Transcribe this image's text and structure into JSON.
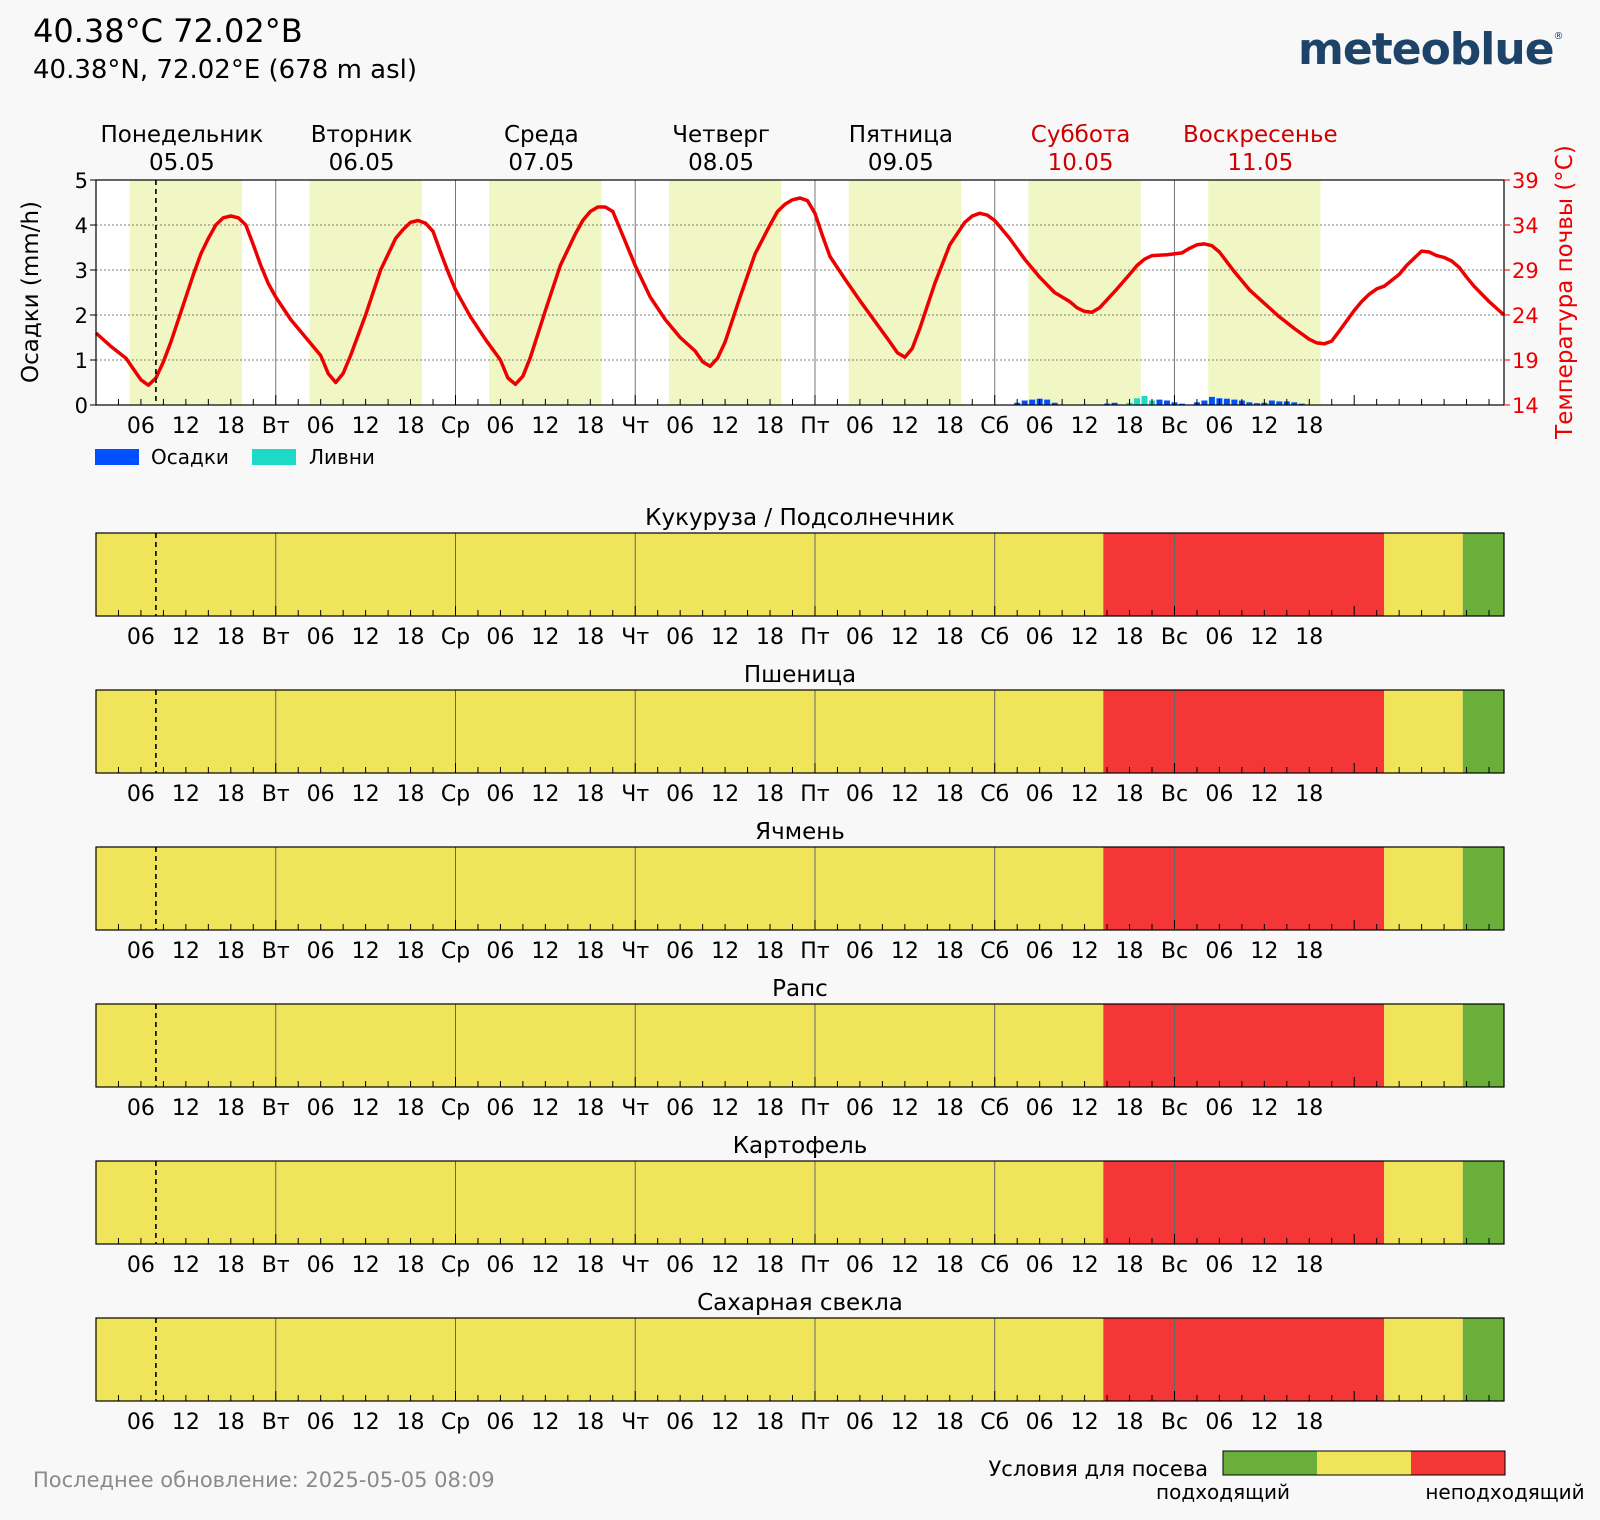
{
  "header": {
    "title": "40.38°C 72.02°B",
    "subtitle": "40.38°N, 72.02°E (678 m asl)",
    "brand": "meteoblue",
    "brand_mark": "®"
  },
  "footer": {
    "last_update": "Последнее обновление: 2025-05-05 08:09"
  },
  "colors": {
    "suitable": "#6aaf3a",
    "neutral": "#f0e55a",
    "unsuitable": "#f43636",
    "precip": "#0050ff",
    "showers": "#1ed8c8",
    "temp_line": "#ee0000",
    "daylight": "#f1f7c4",
    "weekend_label": "#cc0000"
  },
  "days": [
    {
      "name": "Понедельник",
      "date": "05.05",
      "short": "",
      "weekend": false
    },
    {
      "name": "Вторник",
      "date": "06.05",
      "short": "Вт",
      "weekend": false
    },
    {
      "name": "Среда",
      "date": "07.05",
      "short": "Ср",
      "weekend": false
    },
    {
      "name": "Четверг",
      "date": "08.05",
      "short": "Чт",
      "weekend": false
    },
    {
      "name": "Пятница",
      "date": "09.05",
      "short": "Пт",
      "weekend": false
    },
    {
      "name": "Суббота",
      "date": "10.05",
      "short": "Сб",
      "weekend": true
    },
    {
      "name": "Воскресенье",
      "date": "11.05",
      "short": "Вс",
      "weekend": true
    }
  ],
  "hour_labels": [
    "06",
    "12",
    "18"
  ],
  "legend": {
    "precip": "Осадки",
    "showers": "Ливни",
    "sowing_title": "Условия для посева",
    "suitable": "подходящий",
    "unsuitable": "неподходящий"
  },
  "chart_data": [
    {
      "type": "line",
      "title": "",
      "ylabel_left": "Осадки (mm/h)",
      "ylabel_right": "Температура почвы (°C)",
      "ylim_left": [
        0,
        5
      ],
      "ylim_right": [
        14,
        39
      ],
      "yticks_left": [
        0,
        1,
        2,
        3,
        4,
        5
      ],
      "yticks_right": [
        14,
        19,
        24,
        29,
        34,
        39
      ],
      "x_unit": "hours since 05.05 00:00",
      "now_hour": 8,
      "daylight": [
        [
          4.5,
          19.5
        ],
        [
          28.5,
          43.5
        ],
        [
          52.5,
          67.5
        ],
        [
          76.5,
          91.5
        ],
        [
          100.5,
          115.5
        ],
        [
          124.5,
          139.5
        ],
        [
          148.5,
          163.5
        ]
      ],
      "grid": true,
      "series": [
        {
          "name": "Температура почвы (°C)",
          "axis": "right",
          "points": [
            [
              0,
              22
            ],
            [
              2,
              20.5
            ],
            [
              4,
              19.2
            ],
            [
              5,
              18
            ],
            [
              6,
              16.8
            ],
            [
              7,
              16.2
            ],
            [
              8,
              17
            ],
            [
              9,
              18.8
            ],
            [
              10,
              21
            ],
            [
              11,
              23.5
            ],
            [
              12,
              26
            ],
            [
              13,
              28.5
            ],
            [
              14,
              30.8
            ],
            [
              15,
              32.5
            ],
            [
              16,
              34
            ],
            [
              17,
              34.8
            ],
            [
              18,
              35
            ],
            [
              19,
              34.8
            ],
            [
              20,
              34
            ],
            [
              21,
              31.8
            ],
            [
              22,
              29.5
            ],
            [
              23,
              27.5
            ],
            [
              24,
              26
            ],
            [
              26,
              23.5
            ],
            [
              28,
              21.5
            ],
            [
              30,
              19.5
            ],
            [
              31,
              17.5
            ],
            [
              32,
              16.5
            ],
            [
              33,
              17.5
            ],
            [
              34,
              19.5
            ],
            [
              36,
              24
            ],
            [
              38,
              29
            ],
            [
              40,
              32.5
            ],
            [
              41,
              33.5
            ],
            [
              42,
              34.3
            ],
            [
              43,
              34.5
            ],
            [
              44,
              34.2
            ],
            [
              45,
              33.3
            ],
            [
              46,
              31
            ],
            [
              47,
              28.8
            ],
            [
              48,
              26.8
            ],
            [
              50,
              23.8
            ],
            [
              52,
              21.3
            ],
            [
              54,
              19
            ],
            [
              55,
              17
            ],
            [
              56,
              16.3
            ],
            [
              57,
              17.2
            ],
            [
              58,
              19.3
            ],
            [
              60,
              24.5
            ],
            [
              62,
              29.5
            ],
            [
              64,
              33
            ],
            [
              65,
              34.5
            ],
            [
              66,
              35.5
            ],
            [
              67,
              36
            ],
            [
              68,
              36
            ],
            [
              69,
              35.5
            ],
            [
              70,
              33.5
            ],
            [
              72,
              29.5
            ],
            [
              74,
              26
            ],
            [
              76,
              23.5
            ],
            [
              78,
              21.5
            ],
            [
              80,
              20
            ],
            [
              81,
              18.8
            ],
            [
              82,
              18.3
            ],
            [
              83,
              19.2
            ],
            [
              84,
              21
            ],
            [
              86,
              26
            ],
            [
              88,
              30.8
            ],
            [
              90,
              34
            ],
            [
              91,
              35.5
            ],
            [
              92,
              36.3
            ],
            [
              93,
              36.8
            ],
            [
              94,
              37
            ],
            [
              95,
              36.7
            ],
            [
              96,
              35.3
            ],
            [
              97,
              32.8
            ],
            [
              98,
              30.5
            ],
            [
              100,
              28
            ],
            [
              102,
              25.6
            ],
            [
              104,
              23.3
            ],
            [
              106,
              21
            ],
            [
              107,
              19.8
            ],
            [
              108,
              19.3
            ],
            [
              109,
              20.3
            ],
            [
              110,
              22.5
            ],
            [
              112,
              27.5
            ],
            [
              114,
              31.8
            ],
            [
              116,
              34.3
            ],
            [
              117,
              35
            ],
            [
              118,
              35.3
            ],
            [
              119,
              35.1
            ],
            [
              120,
              34.5
            ],
            [
              122,
              32.5
            ],
            [
              124,
              30.2
            ],
            [
              126,
              28.2
            ],
            [
              128,
              26.5
            ],
            [
              130,
              25.5
            ],
            [
              131,
              24.8
            ],
            [
              132,
              24.4
            ],
            [
              133,
              24.3
            ],
            [
              134,
              24.8
            ],
            [
              136,
              26.6
            ],
            [
              138,
              28.5
            ],
            [
              139,
              29.5
            ],
            [
              140,
              30.2
            ],
            [
              141,
              30.6
            ],
            [
              143,
              30.7
            ],
            [
              145,
              30.9
            ],
            [
              146,
              31.4
            ],
            [
              147,
              31.8
            ],
            [
              148,
              31.9
            ],
            [
              149,
              31.7
            ],
            [
              150,
              31
            ],
            [
              152,
              28.8
            ],
            [
              154,
              26.8
            ],
            [
              156,
              25.3
            ],
            [
              158,
              23.8
            ],
            [
              160,
              22.5
            ],
            [
              162,
              21.3
            ],
            [
              163,
              20.9
            ],
            [
              164,
              20.8
            ],
            [
              165,
              21.1
            ],
            [
              166,
              22.2
            ],
            [
              168,
              24.5
            ],
            [
              169,
              25.5
            ],
            [
              170,
              26.3
            ],
            [
              171,
              26.9
            ],
            [
              172,
              27.2
            ],
            [
              174,
              28.5
            ],
            [
              175,
              29.5
            ],
            [
              176,
              30.3
            ],
            [
              177,
              31.1
            ],
            [
              178,
              31
            ],
            [
              179,
              30.6
            ],
            [
              180,
              30.4
            ],
            [
              181,
              30
            ],
            [
              182,
              29.3
            ],
            [
              183,
              28.2
            ],
            [
              184,
              27.2
            ],
            [
              186,
              25.5
            ],
            [
              188,
              24
            ]
          ]
        },
        {
          "name": "Осадки",
          "axis": "left",
          "bars": [
            [
              123,
              0.05
            ],
            [
              124,
              0.1
            ],
            [
              125,
              0.12
            ],
            [
              126,
              0.14
            ],
            [
              127,
              0.12
            ],
            [
              128,
              0.05
            ],
            [
              135,
              0.03
            ],
            [
              136,
              0.05
            ],
            [
              140,
              0.08
            ],
            [
              141,
              0.05
            ],
            [
              142,
              0.12
            ],
            [
              143,
              0.1
            ],
            [
              144,
              0.06
            ],
            [
              145,
              0.03
            ],
            [
              147,
              0.06
            ],
            [
              148,
              0.1
            ],
            [
              149,
              0.18
            ],
            [
              150,
              0.15
            ],
            [
              151,
              0.14
            ],
            [
              152,
              0.12
            ],
            [
              153,
              0.1
            ],
            [
              154,
              0.06
            ],
            [
              155,
              0.04
            ],
            [
              156,
              0.05
            ],
            [
              157,
              0.1
            ],
            [
              158,
              0.08
            ],
            [
              159,
              0.08
            ],
            [
              160,
              0.06
            ],
            [
              161,
              0.03
            ]
          ]
        },
        {
          "name": "Ливни",
          "axis": "left",
          "bars": [
            [
              138,
              0.05
            ],
            [
              139,
              0.15
            ],
            [
              140,
              0.2
            ],
            [
              141,
              0.1
            ]
          ]
        }
      ]
    },
    {
      "type": "heatmap",
      "x_unit": "hours since 05.05 00:00",
      "legend": [
        "подходящий",
        "неподходящий"
      ],
      "crops": [
        {
          "name": "Кукуруза / Подсолнечник",
          "segments": [
            {
              "from": 0,
              "to": 134.5,
              "level": "neutral"
            },
            {
              "from": 134.5,
              "to": 172,
              "level": "unsuitable"
            },
            {
              "from": 172,
              "to": 182.5,
              "level": "neutral"
            },
            {
              "from": 182.5,
              "to": 188,
              "level": "suitable"
            }
          ]
        },
        {
          "name": "Пшеница",
          "segments": [
            {
              "from": 0,
              "to": 134.5,
              "level": "neutral"
            },
            {
              "from": 134.5,
              "to": 172,
              "level": "unsuitable"
            },
            {
              "from": 172,
              "to": 182.5,
              "level": "neutral"
            },
            {
              "from": 182.5,
              "to": 188,
              "level": "suitable"
            }
          ]
        },
        {
          "name": "Ячмень",
          "segments": [
            {
              "from": 0,
              "to": 134.5,
              "level": "neutral"
            },
            {
              "from": 134.5,
              "to": 172,
              "level": "unsuitable"
            },
            {
              "from": 172,
              "to": 182.5,
              "level": "neutral"
            },
            {
              "from": 182.5,
              "to": 188,
              "level": "suitable"
            }
          ]
        },
        {
          "name": "Рапс",
          "segments": [
            {
              "from": 0,
              "to": 134.5,
              "level": "neutral"
            },
            {
              "from": 134.5,
              "to": 172,
              "level": "unsuitable"
            },
            {
              "from": 172,
              "to": 182.5,
              "level": "neutral"
            },
            {
              "from": 182.5,
              "to": 188,
              "level": "suitable"
            }
          ]
        },
        {
          "name": "Картофель",
          "segments": [
            {
              "from": 0,
              "to": 134.5,
              "level": "neutral"
            },
            {
              "from": 134.5,
              "to": 172,
              "level": "unsuitable"
            },
            {
              "from": 172,
              "to": 182.5,
              "level": "neutral"
            },
            {
              "from": 182.5,
              "to": 188,
              "level": "suitable"
            }
          ]
        },
        {
          "name": "Сахарная свекла",
          "segments": [
            {
              "from": 0,
              "to": 134.5,
              "level": "neutral"
            },
            {
              "from": 134.5,
              "to": 172,
              "level": "unsuitable"
            },
            {
              "from": 172,
              "to": 182.5,
              "level": "neutral"
            },
            {
              "from": 182.5,
              "to": 188,
              "level": "suitable"
            }
          ]
        }
      ]
    }
  ]
}
